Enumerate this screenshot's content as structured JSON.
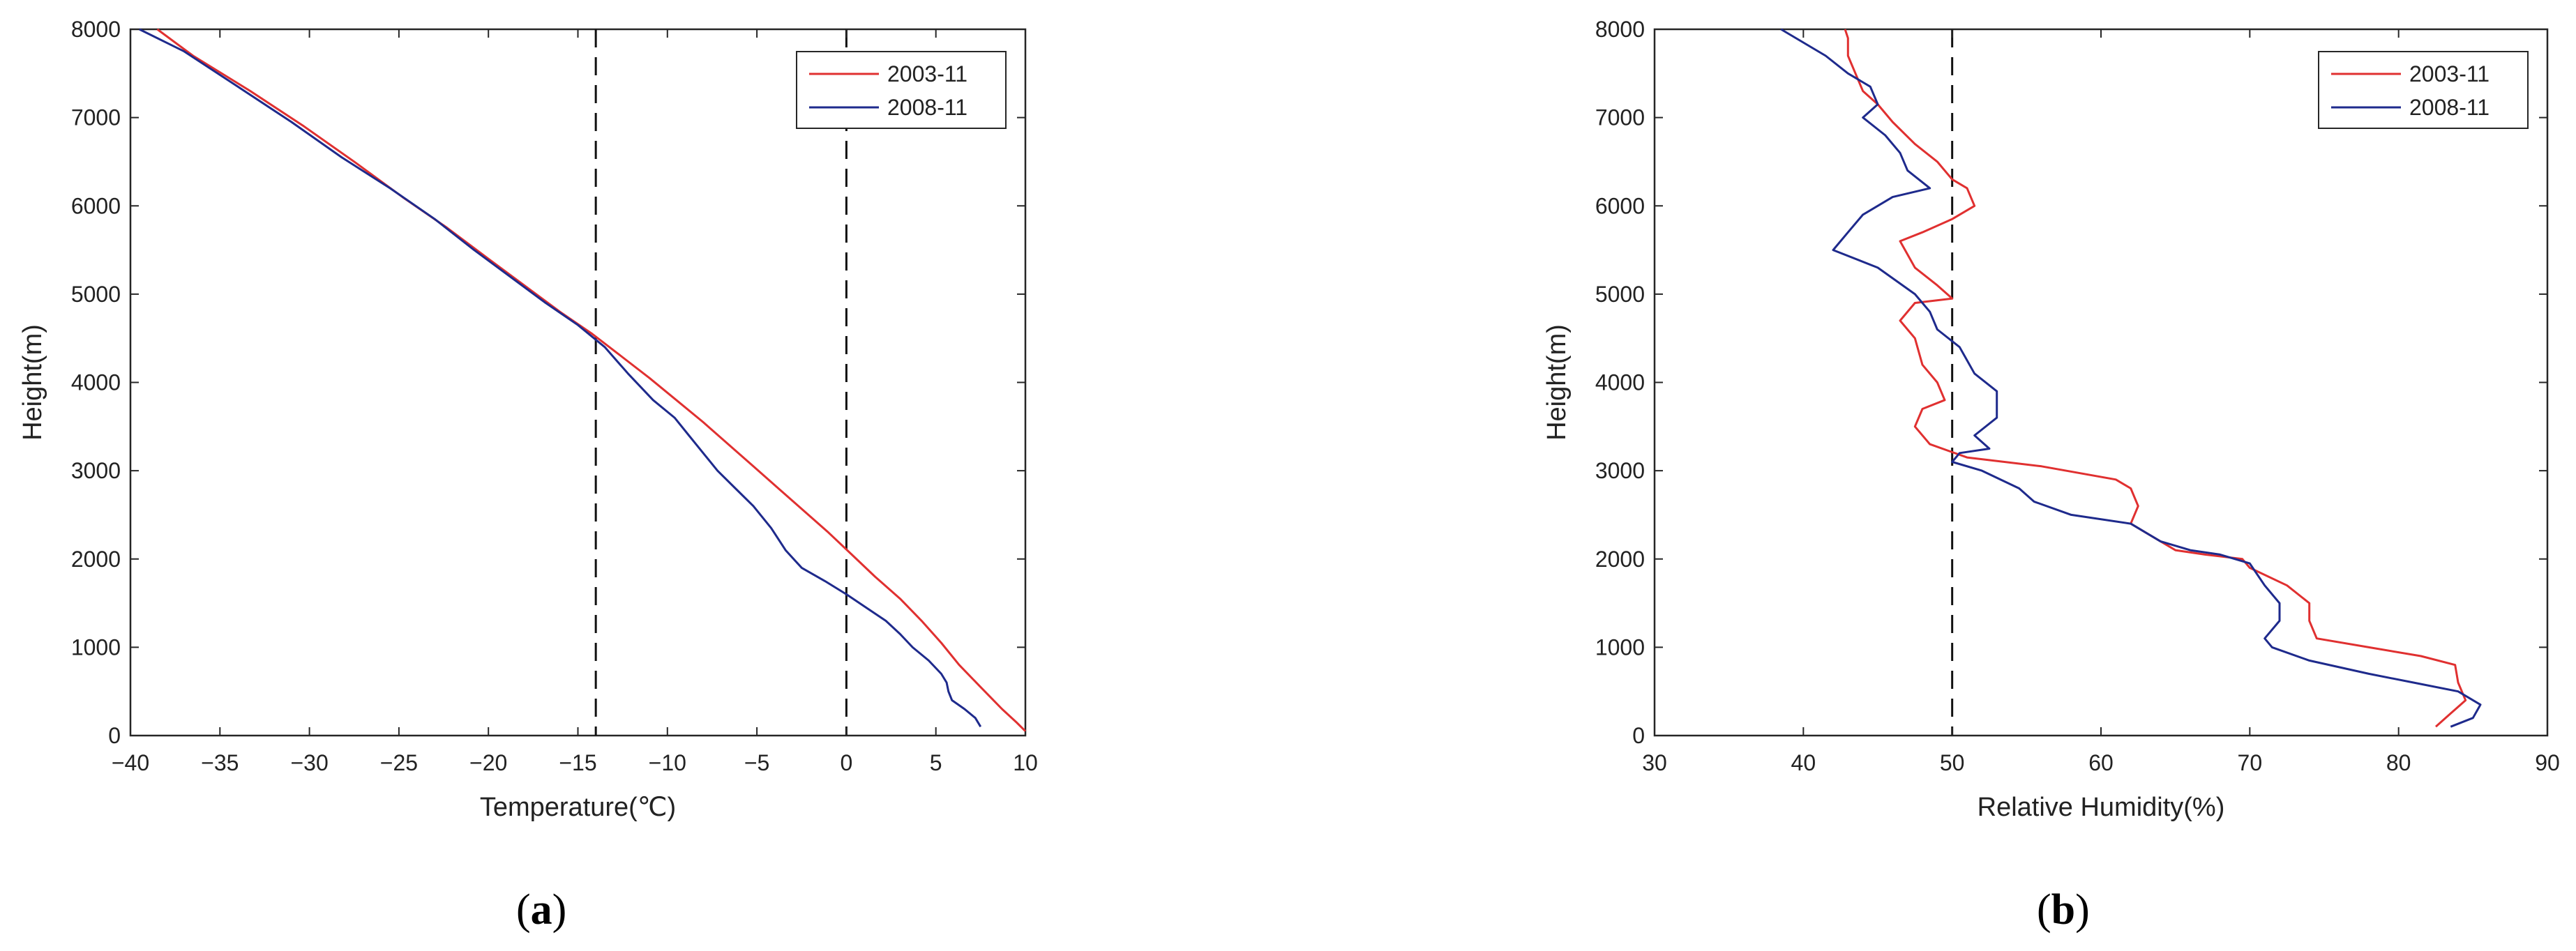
{
  "panels": [
    {
      "label_open": "(",
      "label_letter": "a",
      "label_close": ")"
    },
    {
      "label_open": "(",
      "label_letter": "b",
      "label_close": ")"
    }
  ],
  "chart_data": [
    {
      "type": "line",
      "xlabel": "Temperature(℃)",
      "ylabel": "Height(m)",
      "xlim": [
        -40,
        10
      ],
      "ylim": [
        0,
        8000
      ],
      "xticks": [
        -40,
        -35,
        -30,
        -25,
        -20,
        -15,
        -10,
        -5,
        0,
        5,
        10
      ],
      "yticks": [
        0,
        1000,
        2000,
        3000,
        4000,
        5000,
        6000,
        7000,
        8000
      ],
      "grid": false,
      "legend": "top-right",
      "reference_lines_x": [
        -14,
        0
      ],
      "series": [
        {
          "name": "2003-11",
          "color": "#e03030",
          "points": [
            [
              10,
              50
            ],
            [
              9.5,
              150
            ],
            [
              8.7,
              300
            ],
            [
              7.5,
              550
            ],
            [
              6.3,
              800
            ],
            [
              5.3,
              1050
            ],
            [
              4.2,
              1300
            ],
            [
              3.0,
              1550
            ],
            [
              1.6,
              1800
            ],
            [
              0.3,
              2050
            ],
            [
              -1.0,
              2300
            ],
            [
              -2.4,
              2550
            ],
            [
              -3.8,
              2800
            ],
            [
              -5.2,
              3050
            ],
            [
              -6.6,
              3300
            ],
            [
              -8.0,
              3550
            ],
            [
              -9.5,
              3800
            ],
            [
              -11.0,
              4050
            ],
            [
              -12.6,
              4300
            ],
            [
              -14.2,
              4550
            ],
            [
              -16.0,
              4800
            ],
            [
              -18.0,
              5100
            ],
            [
              -20.0,
              5400
            ],
            [
              -22.3,
              5750
            ],
            [
              -24.8,
              6100
            ],
            [
              -27.5,
              6500
            ],
            [
              -30.3,
              6900
            ],
            [
              -33.3,
              7300
            ],
            [
              -36.5,
              7700
            ],
            [
              -38.5,
              8000
            ]
          ]
        },
        {
          "name": "2008-11",
          "color": "#1e2a8c",
          "points": [
            [
              7.5,
              100
            ],
            [
              7.2,
              200
            ],
            [
              6.6,
              300
            ],
            [
              5.9,
              400
            ],
            [
              5.7,
              500
            ],
            [
              5.6,
              600
            ],
            [
              5.3,
              700
            ],
            [
              4.6,
              850
            ],
            [
              3.7,
              1000
            ],
            [
              3.0,
              1150
            ],
            [
              2.2,
              1300
            ],
            [
              1.1,
              1450
            ],
            [
              0.0,
              1600
            ],
            [
              -1.2,
              1750
            ],
            [
              -2.5,
              1900
            ],
            [
              -3.4,
              2100
            ],
            [
              -4.2,
              2350
            ],
            [
              -5.2,
              2600
            ],
            [
              -6.2,
              2800
            ],
            [
              -7.2,
              3000
            ],
            [
              -8.0,
              3200
            ],
            [
              -8.8,
              3400
            ],
            [
              -9.6,
              3600
            ],
            [
              -10.8,
              3800
            ],
            [
              -12.2,
              4100
            ],
            [
              -13.5,
              4400
            ],
            [
              -15.0,
              4650
            ],
            [
              -16.8,
              4900
            ],
            [
              -18.8,
              5200
            ],
            [
              -20.8,
              5500
            ],
            [
              -23.0,
              5850
            ],
            [
              -25.5,
              6200
            ],
            [
              -28.2,
              6550
            ],
            [
              -31.0,
              6950
            ],
            [
              -34.0,
              7350
            ],
            [
              -37.0,
              7750
            ],
            [
              -39.5,
              8000
            ]
          ]
        }
      ]
    },
    {
      "type": "line",
      "xlabel": "Relative Humidity(%)",
      "ylabel": "Height(m)",
      "xlim": [
        30,
        90
      ],
      "ylim": [
        0,
        8000
      ],
      "xticks": [
        30,
        40,
        50,
        60,
        70,
        80,
        90
      ],
      "yticks": [
        0,
        1000,
        2000,
        3000,
        4000,
        5000,
        6000,
        7000,
        8000
      ],
      "grid": false,
      "legend": "top-right",
      "reference_lines_x": [
        50
      ],
      "series": [
        {
          "name": "2003-11",
          "color": "#e03030",
          "points": [
            [
              82.5,
              100
            ],
            [
              83.5,
              250
            ],
            [
              84.5,
              400
            ],
            [
              84.0,
              600
            ],
            [
              83.8,
              800
            ],
            [
              81.5,
              900
            ],
            [
              78.0,
              1000
            ],
            [
              74.5,
              1100
            ],
            [
              74.0,
              1300
            ],
            [
              74.0,
              1500
            ],
            [
              72.5,
              1700
            ],
            [
              70.0,
              1900
            ],
            [
              69.5,
              2000
            ],
            [
              67.0,
              2050
            ],
            [
              65.0,
              2100
            ],
            [
              64.0,
              2200
            ],
            [
              63.0,
              2300
            ],
            [
              62.0,
              2400
            ],
            [
              62.5,
              2600
            ],
            [
              62.0,
              2800
            ],
            [
              61.0,
              2900
            ],
            [
              56.0,
              3050
            ],
            [
              51.0,
              3150
            ],
            [
              48.5,
              3300
            ],
            [
              47.5,
              3500
            ],
            [
              48.0,
              3700
            ],
            [
              49.5,
              3800
            ],
            [
              49.0,
              4000
            ],
            [
              48.0,
              4200
            ],
            [
              47.5,
              4500
            ],
            [
              46.5,
              4700
            ],
            [
              47.5,
              4900
            ],
            [
              50.0,
              4950
            ],
            [
              49.0,
              5100
            ],
            [
              47.5,
              5300
            ],
            [
              46.5,
              5600
            ],
            [
              48.0,
              5700
            ],
            [
              50.0,
              5850
            ],
            [
              51.5,
              6000
            ],
            [
              51.0,
              6200
            ],
            [
              50.0,
              6300
            ],
            [
              49.0,
              6500
            ],
            [
              47.5,
              6700
            ],
            [
              46.0,
              6950
            ],
            [
              45.0,
              7150
            ],
            [
              44.0,
              7300
            ],
            [
              43.5,
              7500
            ],
            [
              43.0,
              7700
            ],
            [
              43.0,
              7900
            ],
            [
              42.8,
              8000
            ]
          ]
        },
        {
          "name": "2008-11",
          "color": "#1e2a8c",
          "points": [
            [
              83.5,
              100
            ],
            [
              85.0,
              200
            ],
            [
              85.5,
              350
            ],
            [
              84.0,
              500
            ],
            [
              81.0,
              600
            ],
            [
              78.0,
              700
            ],
            [
              74.0,
              850
            ],
            [
              71.5,
              1000
            ],
            [
              71.0,
              1100
            ],
            [
              72.0,
              1300
            ],
            [
              72.0,
              1500
            ],
            [
              71.0,
              1700
            ],
            [
              70.0,
              1950
            ],
            [
              68.0,
              2050
            ],
            [
              66.0,
              2100
            ],
            [
              64.0,
              2200
            ],
            [
              62.0,
              2400
            ],
            [
              58.0,
              2500
            ],
            [
              55.5,
              2650
            ],
            [
              54.5,
              2800
            ],
            [
              52.0,
              3000
            ],
            [
              50.0,
              3100
            ],
            [
              50.5,
              3200
            ],
            [
              52.5,
              3250
            ],
            [
              51.5,
              3400
            ],
            [
              53.0,
              3600
            ],
            [
              53.0,
              3900
            ],
            [
              51.5,
              4100
            ],
            [
              50.5,
              4400
            ],
            [
              49.0,
              4600
            ],
            [
              48.5,
              4800
            ],
            [
              47.5,
              5000
            ],
            [
              45.0,
              5300
            ],
            [
              42.0,
              5500
            ],
            [
              43.0,
              5700
            ],
            [
              44.0,
              5900
            ],
            [
              46.0,
              6100
            ],
            [
              48.5,
              6200
            ],
            [
              47.0,
              6400
            ],
            [
              46.5,
              6600
            ],
            [
              45.5,
              6800
            ],
            [
              44.0,
              7000
            ],
            [
              45.0,
              7150
            ],
            [
              44.5,
              7350
            ],
            [
              43.0,
              7500
            ],
            [
              41.5,
              7700
            ],
            [
              40.0,
              7850
            ],
            [
              38.5,
              8000
            ]
          ]
        }
      ]
    }
  ]
}
